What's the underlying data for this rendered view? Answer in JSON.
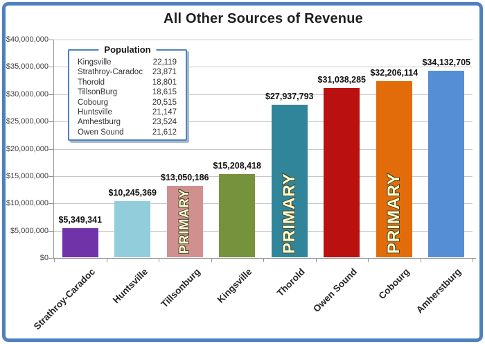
{
  "chart_data": {
    "type": "bar",
    "title": "All Other Sources of Revenue",
    "categories": [
      "Strathroy-Caradoc",
      "Huntsville",
      "Tillsonburg",
      "Kingsville",
      "Thorold",
      "Owen Sound",
      "Cobourg",
      "Amherstburg"
    ],
    "values": [
      5349341,
      10245369,
      13050186,
      15208418,
      27937793,
      31038285,
      32206114,
      34132705
    ],
    "value_labels": [
      "$5,349,341",
      "$10,245,369",
      "$13,050,186",
      "$15,208,418",
      "$27,937,793",
      "$31,038,285",
      "$32,206,114",
      "$34,132,705"
    ],
    "bar_colors": [
      "#7133a8",
      "#92cddc",
      "#d0908f",
      "#77923d",
      "#31859b",
      "#bb1010",
      "#e36c0a",
      "#558ed5"
    ],
    "primary_flags": [
      false,
      false,
      true,
      false,
      true,
      false,
      true,
      false
    ],
    "primary_text": "PRIMARY",
    "ylim": [
      0,
      40000000
    ],
    "y_ticks": [
      "$0",
      "$5,000,000",
      "$10,000,000",
      "$15,000,000",
      "$20,000,000",
      "$25,000,000",
      "$30,000,000",
      "$35,000,000",
      "$40,000,000"
    ],
    "grid": true,
    "legend_position": "upper-left",
    "legend": {
      "title": "Population",
      "rows": [
        {
          "name": "Kingsville",
          "value": "22,119"
        },
        {
          "name": "Strathroy-Caradoc",
          "value": "23,871"
        },
        {
          "name": "Thorold",
          "value": "18,801"
        },
        {
          "name": "TillsonBurg",
          "value": "18,615"
        },
        {
          "name": "Cobourg",
          "value": "20,515"
        },
        {
          "name": "Huntsville",
          "value": "21,147"
        },
        {
          "name": "Amhestburg",
          "value": "23,524"
        },
        {
          "name": "Owen Sound",
          "value": "21,612"
        }
      ]
    },
    "colors": {
      "frame_border": "#4d80be",
      "gridline": "#c9c9c9",
      "axis": "#969696",
      "primary_fill": "#fdfccb",
      "primary_outline": "#45452c"
    }
  }
}
